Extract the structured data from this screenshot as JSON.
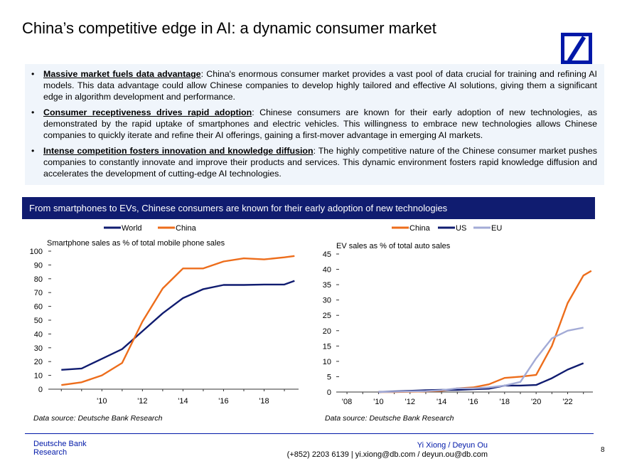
{
  "page": {
    "title": "China’s competitive edge in AI: a dynamic consumer market",
    "page_number": "8"
  },
  "bullets": [
    {
      "bold": "Massive market fuels data advantage",
      "sep": ":",
      "text": " China's enormous consumer market provides a vast pool of data crucial for training and refining AI models. This data advantage could allow Chinese companies to develop highly tailored and effective AI solutions, giving them a significant edge in algorithm development and performance."
    },
    {
      "bold": "Consumer receptiveness drives rapid adoption",
      "sep": ":",
      "text": " Chinese consumers are known for their early adoption of new technologies, as demonstrated by the rapid uptake of smartphones and electric vehicles. This willingness to embrace new technologies allows Chinese companies to quickly iterate and refine their AI offerings, gaining a first-mover advantage in emerging AI markets."
    },
    {
      "bold": "Intense competition fosters innovation and knowledge diffusion",
      "sep": ":",
      "text": "  The highly competitive nature of the Chinese consumer market pushes companies to constantly innovate and improve their products and services. This dynamic environment fosters rapid knowledge diffusion and accelerates the development of cutting-edge AI technologies."
    }
  ],
  "banner": "From smartphones to EVs, Chinese consumers are known for their early adoption of new technologies",
  "chart_data": [
    {
      "type": "line",
      "title": "Smartphone sales as % of total mobile phone sales",
      "xlabel": "",
      "ylabel": "",
      "xlim": [
        2007.5,
        2019.7
      ],
      "ylim": [
        0,
        100
      ],
      "yticks": [
        0,
        10,
        20,
        30,
        40,
        50,
        60,
        70,
        80,
        90,
        100
      ],
      "xticks": [
        {
          "v": 2010,
          "label": "'10"
        },
        {
          "v": 2012,
          "label": "'12"
        },
        {
          "v": 2014,
          "label": "'14"
        },
        {
          "v": 2016,
          "label": "'16"
        },
        {
          "v": 2018,
          "label": "'18"
        }
      ],
      "series": [
        {
          "name": "World",
          "color": "#101c70",
          "x": [
            2008,
            2009,
            2010,
            2011,
            2012,
            2013,
            2014,
            2015,
            2016,
            2017,
            2018,
            2019,
            2019.5
          ],
          "y": [
            14,
            15,
            22,
            29,
            42,
            55,
            66,
            72.5,
            75.5,
            75.5,
            75.8,
            75.8,
            78.5
          ]
        },
        {
          "name": "China",
          "color": "#ed6d1b",
          "x": [
            2008,
            2009,
            2010,
            2011,
            2012,
            2013,
            2014,
            2015,
            2016,
            2017,
            2018,
            2019,
            2019.5
          ],
          "y": [
            3,
            5,
            10,
            19,
            49,
            73,
            87.5,
            87.5,
            92.5,
            94.8,
            94,
            95.5,
            96.5
          ]
        }
      ],
      "source": "Data source: Deutsche Bank Research"
    },
    {
      "type": "line",
      "title": "EV sales as % of total auto sales",
      "xlabel": "",
      "ylabel": "",
      "xlim": [
        2007.5,
        2023.6
      ],
      "ylim": [
        0,
        45
      ],
      "yticks": [
        0,
        5,
        10,
        15,
        20,
        25,
        30,
        35,
        40,
        45
      ],
      "xticks": [
        {
          "v": 2008,
          "label": "'08"
        },
        {
          "v": 2010,
          "label": "'10"
        },
        {
          "v": 2012,
          "label": "'12"
        },
        {
          "v": 2014,
          "label": "'14"
        },
        {
          "v": 2016,
          "label": "'16"
        },
        {
          "v": 2018,
          "label": "'18"
        },
        {
          "v": 2020,
          "label": "'20"
        },
        {
          "v": 2022,
          "label": "'22"
        }
      ],
      "series": [
        {
          "name": "China",
          "color": "#ed6d1b",
          "x": [
            2010,
            2011,
            2012,
            2013,
            2014,
            2015,
            2016,
            2017,
            2018,
            2019,
            2020,
            2021,
            2022,
            2023,
            2023.5
          ],
          "y": [
            0,
            0,
            0.1,
            0.2,
            0.4,
            1.2,
            1.5,
            2.5,
            4.6,
            5,
            5.6,
            15,
            29,
            38,
            39.5
          ]
        },
        {
          "name": "US",
          "color": "#101c70",
          "x": [
            2010,
            2011,
            2012,
            2013,
            2014,
            2015,
            2016,
            2017,
            2018,
            2019,
            2020,
            2021,
            2022,
            2023
          ],
          "y": [
            0,
            0.2,
            0.4,
            0.6,
            0.7,
            0.7,
            0.9,
            1.1,
            2.1,
            2.1,
            2.3,
            4.5,
            7.3,
            9.4
          ]
        },
        {
          "name": "EU",
          "color": "#a3abd6",
          "x": [
            2010,
            2011,
            2012,
            2013,
            2014,
            2015,
            2016,
            2017,
            2018,
            2019,
            2020,
            2021,
            2022,
            2023
          ],
          "y": [
            0,
            0.1,
            0.2,
            0.3,
            0.6,
            1.2,
            1.2,
            1.5,
            2.1,
            3.3,
            11,
            17.5,
            20,
            21
          ]
        }
      ],
      "source": "Data source: Deutsche Bank Research"
    }
  ],
  "footer": {
    "brand_line1": "Deutsche Bank",
    "brand_line2": "Research",
    "names": "Yi Xiong / Deyun Ou",
    "contacts": "(+852) 2203 6139 | yi.xiong@db.com / deyun.ou@db.com"
  }
}
